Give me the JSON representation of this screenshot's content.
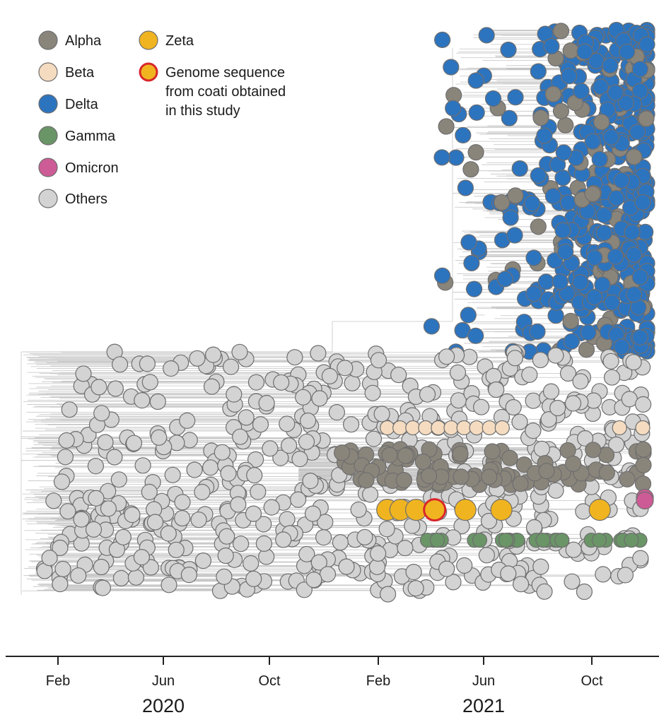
{
  "chart_data": {
    "type": "scatter",
    "description_free": true,
    "x_axis": {
      "ticks": [
        "Feb",
        "Jun",
        "Oct",
        "Feb",
        "Jun",
        "Oct"
      ],
      "tick_dates": [
        "2020-02-01",
        "2020-06-01",
        "2020-10-01",
        "2021-02-01",
        "2021-06-01",
        "2021-10-01"
      ],
      "year_labels": [
        "2020",
        "2021"
      ],
      "range": [
        "2020-01-08",
        "2021-12-10"
      ]
    },
    "legend": {
      "items": [
        {
          "key": "alpha",
          "label": "Alpha",
          "color": "#8a857b"
        },
        {
          "key": "beta",
          "label": "Beta",
          "color": "#f5dcc0"
        },
        {
          "key": "delta",
          "label": "Delta",
          "color": "#2d74bf"
        },
        {
          "key": "gamma",
          "label": "Gamma",
          "color": "#6a9567"
        },
        {
          "key": "omicron",
          "label": "Omicron",
          "color": "#cd5b96"
        },
        {
          "key": "others",
          "label": "Others",
          "color": "#d3d3d3"
        },
        {
          "key": "zeta",
          "label": "Zeta",
          "color": "#f0b420"
        },
        {
          "key": "coati",
          "label_lines": [
            "Genome sequence",
            "from coati obtained",
            "in this study"
          ],
          "color": "#f0b420",
          "outline": "#d8262c"
        }
      ],
      "placement": "top-left"
    },
    "series": [
      {
        "key": "others",
        "date_span": [
          "2020-01-10",
          "2021-12-08"
        ],
        "clade_rows": [
          0.55,
          0.95
        ]
      },
      {
        "key": "delta",
        "date_span": [
          "2021-04-01",
          "2021-12-08"
        ],
        "clade_rows": [
          0.02,
          0.55
        ]
      },
      {
        "key": "alpha",
        "date_span": [
          "2020-12-15",
          "2021-12-05"
        ],
        "clade_rows": [
          0.71,
          0.77
        ]
      },
      {
        "key": "beta",
        "date_span": [
          "2021-02-10",
          "2021-11-28"
        ],
        "clade_rows": [
          0.675,
          0.675
        ]
      },
      {
        "key": "gamma",
        "date_span": [
          "2021-03-01",
          "2021-12-05"
        ],
        "clade_rows": [
          0.86,
          0.86
        ]
      },
      {
        "key": "zeta",
        "dates": [
          "2021-02-10",
          "2021-02-25",
          "2021-03-15",
          "2021-04-05",
          "2021-05-10",
          "2021-06-20",
          "2021-10-10"
        ],
        "clade_row": 0.81
      },
      {
        "key": "omicron",
        "dates": [
          "2021-12-02",
          "2021-12-06"
        ],
        "clade_row": 0.79
      },
      {
        "key": "coati",
        "dates": [
          "2021-04-05"
        ],
        "clade_row": 0.81
      }
    ]
  }
}
